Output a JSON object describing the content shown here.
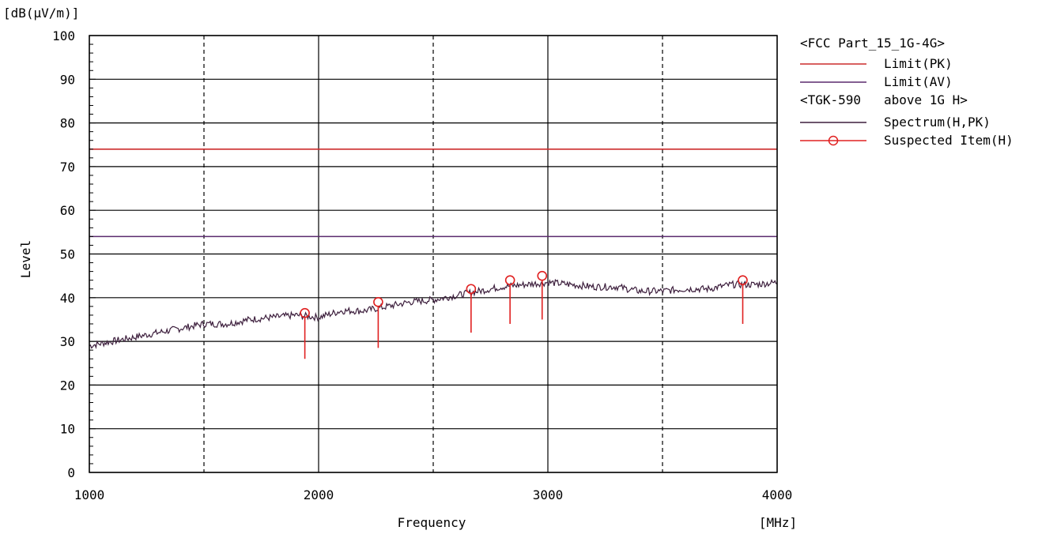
{
  "chart_data": {
    "type": "line",
    "ylabel": "Level",
    "y_unit": "[dB(μV/m)]",
    "xlabel": "Frequency",
    "x_unit": "[MHz]",
    "xlim": [
      1000,
      4000
    ],
    "ylim": [
      0,
      100
    ],
    "x_ticks": [
      1000,
      2000,
      3000,
      4000
    ],
    "x_tick_labels": [
      "1000",
      "2000",
      "3000",
      "4000"
    ],
    "x_dashed_gridlines": [
      1500,
      2500,
      3500
    ],
    "y_ticks": [
      0,
      10,
      20,
      30,
      40,
      50,
      60,
      70,
      80,
      90,
      100
    ],
    "y_tick_labels": [
      "0",
      "10",
      "20",
      "30",
      "40",
      "50",
      "60",
      "70",
      "80",
      "90",
      "100"
    ],
    "grid": true,
    "legend_placement": "right",
    "legend": {
      "group1_header": "<FCC Part_15_1G-4G>",
      "group2_header": "<TGK-590   above 1G H>"
    },
    "series": [
      {
        "name": "Limit(PK)",
        "kind": "limit",
        "color": "#cc2b2b",
        "y": 74
      },
      {
        "name": "Limit(AV)",
        "kind": "limit",
        "color": "#5a2a6e",
        "y": 54
      },
      {
        "name": "Spectrum(H,PK)",
        "kind": "spectrum",
        "color": "#3d1f3d",
        "x": [
          1000,
          1100,
          1200,
          1300,
          1400,
          1500,
          1600,
          1700,
          1800,
          1900,
          2000,
          2100,
          2200,
          2300,
          2400,
          2500,
          2600,
          2700,
          2800,
          2900,
          3000,
          3100,
          3200,
          3300,
          3400,
          3500,
          3600,
          3700,
          3800,
          3900,
          4000
        ],
        "values": [
          29,
          30,
          31,
          32,
          33,
          34,
          34,
          35,
          35.5,
          36,
          35.5,
          37,
          37,
          38,
          39,
          39.5,
          40.5,
          41.5,
          42.5,
          43,
          43.5,
          43,
          42.5,
          42.5,
          41.5,
          41.5,
          42,
          42,
          43,
          43,
          43.5
        ]
      },
      {
        "name": "Suspected Item(H)",
        "kind": "markers",
        "color": "#e02020",
        "x": [
          1940,
          2260,
          2665,
          2835,
          2975,
          3850
        ],
        "values": [
          36.5,
          39,
          42,
          44,
          45,
          44
        ],
        "stem_bottom": [
          26,
          28.5,
          32,
          34,
          35,
          34
        ]
      }
    ]
  }
}
